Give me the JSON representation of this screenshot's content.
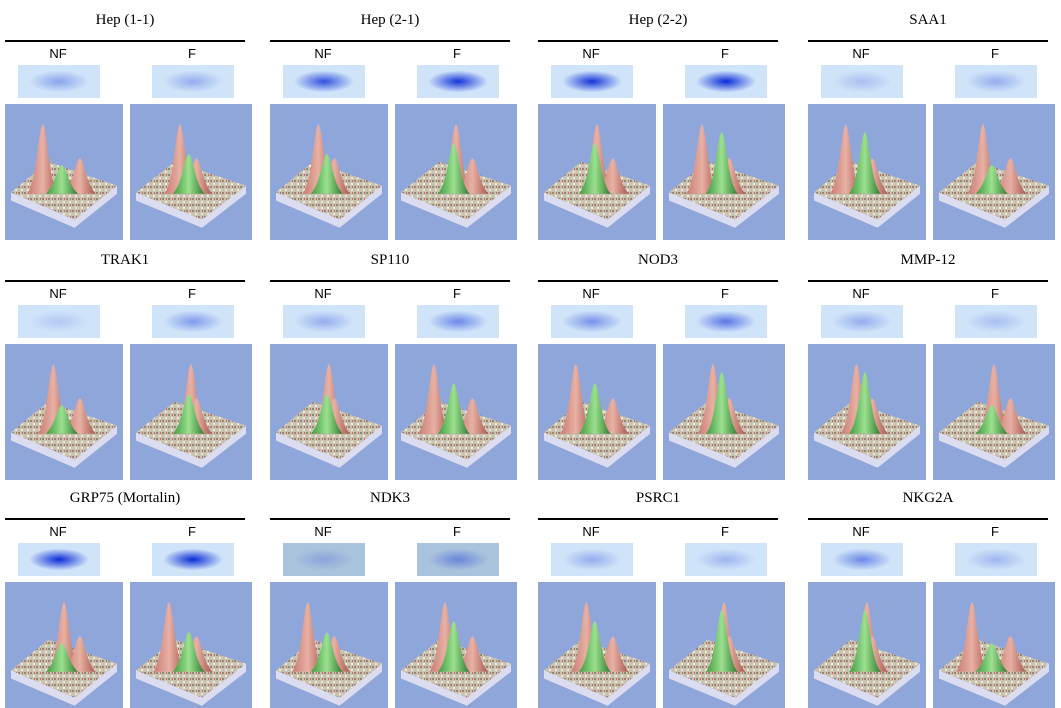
{
  "panels": [
    {
      "title": "Hep (1-1)",
      "labels": [
        "NF",
        "F"
      ]
    },
    {
      "title": "Hep (2-1)",
      "labels": [
        "NF",
        "F"
      ]
    },
    {
      "title": "Hep (2-2)",
      "labels": [
        "NF",
        "F"
      ]
    },
    {
      "title": "SAA1",
      "labels": [
        "NF",
        "F"
      ]
    },
    {
      "title": "TRAK1",
      "labels": [
        "NF",
        "F"
      ]
    },
    {
      "title": "SP110",
      "labels": [
        "NF",
        "F"
      ]
    },
    {
      "title": "NOD3",
      "labels": [
        "NF",
        "F"
      ]
    },
    {
      "title": "MMP-12",
      "labels": [
        "NF",
        "F"
      ]
    },
    {
      "title": "GRP75 (Mortalin)",
      "labels": [
        "NF",
        "F"
      ]
    },
    {
      "title": "NDK3",
      "labels": [
        "NF",
        "F"
      ]
    },
    {
      "title": "PSRC1",
      "labels": [
        "NF",
        "F"
      ]
    },
    {
      "title": "NKG2A",
      "labels": [
        "NF",
        "F"
      ]
    }
  ]
}
